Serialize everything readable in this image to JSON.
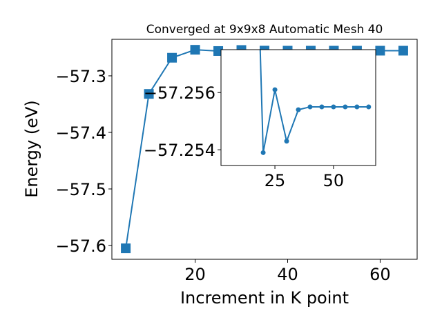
{
  "chart_data": {
    "type": "line",
    "title": "Converged at 9x9x8 Automatic Mesh 40",
    "x_label": "Increment in K point",
    "y_label": "Energy (eV)",
    "x": [
      5,
      10,
      15,
      20,
      25,
      30,
      35,
      40,
      45,
      50,
      55,
      60,
      65
    ],
    "series": [
      {
        "color": "#1f77b4",
        "values": [
          -57.605,
          -57.332,
          -57.268,
          -57.2539,
          -57.2561,
          -57.2543,
          -57.2554,
          -57.2555,
          -57.2555,
          -57.2555,
          -57.2555,
          -57.2555,
          -57.2555
        ]
      }
    ],
    "xlim": [
      2,
      68
    ],
    "ylim": [
      -57.6244,
      -57.2354
    ],
    "xticks": [
      20,
      40,
      60
    ],
    "yticks": [
      {
        "value": -57.3,
        "label": "−57.3"
      },
      {
        "value": -57.4,
        "label": "−57.4"
      },
      {
        "value": -57.5,
        "label": "−57.5"
      },
      {
        "value": -57.6,
        "label": "−57.6"
      }
    ],
    "inset": {
      "xlim": [
        2,
        68
      ],
      "ylim": [
        -57.25345,
        -57.2575
      ],
      "xticks": [
        25,
        50
      ],
      "yticks": [
        {
          "value": -57.256,
          "label": "−57.256"
        },
        {
          "value": -57.254,
          "label": "−57.254"
        }
      ]
    }
  }
}
